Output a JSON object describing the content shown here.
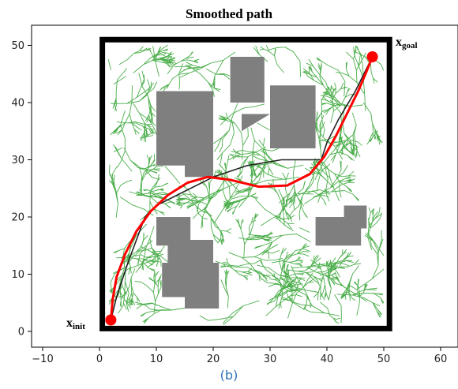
{
  "chart_data": {
    "type": "line",
    "title": "Smoothed path",
    "caption": "(b)",
    "xlabel": "",
    "ylabel": "",
    "xlim": [
      -12,
      62
    ],
    "ylim": [
      -1,
      53
    ],
    "xticks": [
      -10,
      0,
      10,
      20,
      30,
      40,
      50,
      60
    ],
    "yticks": [
      0,
      10,
      20,
      30,
      40,
      50
    ],
    "grid": false,
    "colors": {
      "boundary": "#000000",
      "obstacle": "#7f7f7f",
      "tree": "#2ca02c",
      "raw_path": "#222222",
      "smoothed_path": "#ff0000",
      "endpoint": "#ff0000"
    },
    "boundary": {
      "x0": 0.5,
      "y0": 0.5,
      "x1": 51,
      "y1": 51
    },
    "obstacles": [
      {
        "polygon": [
          [
            10,
            29
          ],
          [
            15,
            29
          ],
          [
            15,
            27
          ],
          [
            20,
            27
          ],
          [
            20,
            42
          ],
          [
            10,
            42
          ]
        ]
      },
      {
        "polygon": [
          [
            23,
            40
          ],
          [
            29,
            40
          ],
          [
            29,
            48
          ],
          [
            23,
            48
          ]
        ]
      },
      {
        "polygon": [
          [
            25,
            35
          ],
          [
            30,
            35
          ],
          [
            30,
            43
          ],
          [
            38,
            43
          ],
          [
            38,
            32
          ],
          [
            30,
            32
          ],
          [
            30,
            35
          ],
          [
            25,
            35
          ],
          [
            25,
            38
          ],
          [
            30,
            38
          ]
        ]
      },
      {
        "polygon": [
          [
            10,
            15
          ],
          [
            12,
            15
          ],
          [
            12,
            12
          ],
          [
            11,
            12
          ],
          [
            11,
            6
          ],
          [
            15,
            6
          ],
          [
            15,
            4
          ],
          [
            21,
            4
          ],
          [
            21,
            12
          ],
          [
            20,
            12
          ],
          [
            20,
            16
          ],
          [
            16,
            16
          ],
          [
            16,
            20
          ],
          [
            10,
            20
          ]
        ]
      },
      {
        "polygon": [
          [
            38,
            15
          ],
          [
            46,
            15
          ],
          [
            46,
            18
          ],
          [
            47,
            18
          ],
          [
            47,
            22
          ],
          [
            43,
            22
          ],
          [
            43,
            20
          ],
          [
            38,
            20
          ]
        ]
      }
    ],
    "series": [
      {
        "kind": "raw-path",
        "x": [
          2,
          3,
          5,
          8,
          10,
          14,
          20,
          26,
          32,
          36,
          39,
          40,
          42,
          45,
          48
        ],
        "y": [
          2,
          6,
          12,
          20,
          22,
          24,
          27,
          29,
          30,
          30,
          30,
          33,
          37,
          42,
          48
        ]
      },
      {
        "kind": "smoothed-path",
        "x": [
          2,
          2.3,
          3,
          4.5,
          6.5,
          9,
          12,
          15.5,
          19,
          23,
          28,
          33,
          37,
          39.5,
          41.5,
          43.5,
          45.5,
          47,
          48
        ],
        "y": [
          2,
          5.5,
          9.5,
          13.5,
          17.5,
          21,
          23.8,
          26,
          27,
          26.5,
          25.3,
          25.5,
          27.5,
          30.5,
          34,
          38,
          42,
          45.5,
          48
        ]
      }
    ],
    "endpoints": {
      "start": {
        "x": 2,
        "y": 2
      },
      "goal": {
        "x": 48,
        "y": 48
      }
    },
    "annotations": {
      "init": {
        "main": "x",
        "sub": "init"
      },
      "goal": {
        "main": "x",
        "sub": "goal"
      }
    },
    "tree_style": "dense green random-tree branches filling free space"
  }
}
